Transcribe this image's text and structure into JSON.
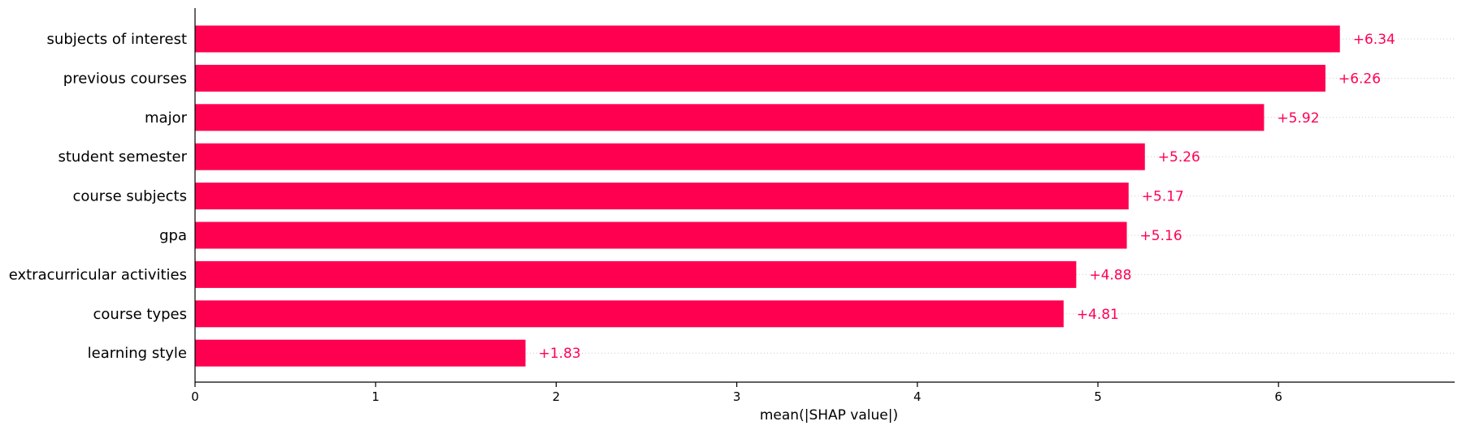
{
  "chart_data": {
    "type": "bar",
    "orientation": "horizontal",
    "categories": [
      "subjects of interest",
      "previous courses",
      "major",
      "student semester",
      "course subjects",
      "gpa",
      "extracurricular activities",
      "course types",
      "learning style"
    ],
    "values": [
      6.34,
      6.26,
      5.92,
      5.26,
      5.17,
      5.16,
      4.88,
      4.81,
      1.83
    ],
    "value_labels": [
      "+6.34",
      "+6.26",
      "+5.92",
      "+5.26",
      "+5.17",
      "+5.16",
      "+4.88",
      "+4.81",
      "+1.83"
    ],
    "xlabel": "mean(|SHAP value|)",
    "xlim": [
      0,
      7
    ],
    "xticks": [
      0,
      1,
      2,
      3,
      4,
      5,
      6
    ],
    "bar_color": "#ff0051",
    "label_color": "#ff0051",
    "gridlines": "dotted row guides",
    "legend": "none"
  }
}
